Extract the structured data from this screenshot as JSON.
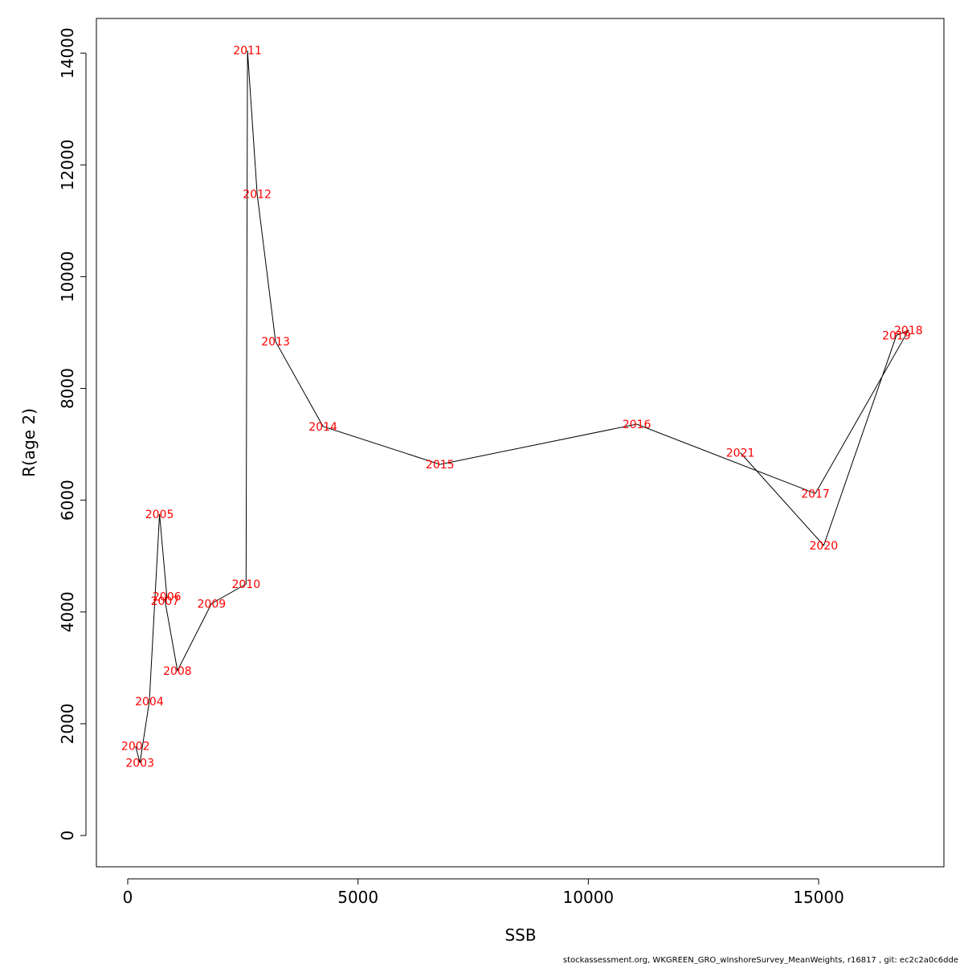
{
  "chart_data": {
    "type": "line",
    "xlabel": "SSB",
    "ylabel": "R(age 2)",
    "xlim": [
      -680,
      17720
    ],
    "ylim": [
      -560,
      14620
    ],
    "xticks": [
      0,
      5000,
      10000,
      15000
    ],
    "yticks": [
      0,
      2000,
      4000,
      6000,
      8000,
      10000,
      12000,
      14000
    ],
    "grid": false,
    "label_color": "#ff0000",
    "line_color": "#000000",
    "points": [
      {
        "label": "2002",
        "x": 170,
        "y": 1600
      },
      {
        "label": "2003",
        "x": 265,
        "y": 1300
      },
      {
        "label": "2004",
        "x": 470,
        "y": 2400
      },
      {
        "label": "2005",
        "x": 690,
        "y": 5750
      },
      {
        "label": "2006",
        "x": 850,
        "y": 4280
      },
      {
        "label": "2007",
        "x": 810,
        "y": 4200
      },
      {
        "label": "2008",
        "x": 1080,
        "y": 2950
      },
      {
        "label": "2009",
        "x": 1820,
        "y": 4150
      },
      {
        "label": "2010",
        "x": 2570,
        "y": 4500
      },
      {
        "label": "2011",
        "x": 2600,
        "y": 14050
      },
      {
        "label": "2012",
        "x": 2810,
        "y": 11480
      },
      {
        "label": "2013",
        "x": 3210,
        "y": 8840
      },
      {
        "label": "2014",
        "x": 4240,
        "y": 7320
      },
      {
        "label": "2015",
        "x": 6780,
        "y": 6640
      },
      {
        "label": "2016",
        "x": 11050,
        "y": 7360
      },
      {
        "label": "2021",
        "x": 13300,
        "y": 6850
      },
      {
        "label": "2017",
        "x": 14930,
        "y": 6120
      },
      {
        "label": "2018",
        "x": 16950,
        "y": 9040
      },
      {
        "label": "2019",
        "x": 16690,
        "y": 8950
      },
      {
        "label": "2020",
        "x": 15110,
        "y": 5190
      }
    ],
    "path_order": [
      "2002",
      "2003",
      "2004",
      "2005",
      "2006",
      "2007",
      "2008",
      "2009",
      "2010",
      "2011",
      "2012",
      "2013",
      "2014",
      "2015",
      "2016",
      "2017",
      "2018",
      "2019",
      "2020",
      "2021"
    ]
  },
  "footer": {
    "text": "stockassessment.org, WKGREEN_GRO_wInshoreSurvey_MeanWeights, r16817 , git: ec2c2a0c6dde"
  }
}
